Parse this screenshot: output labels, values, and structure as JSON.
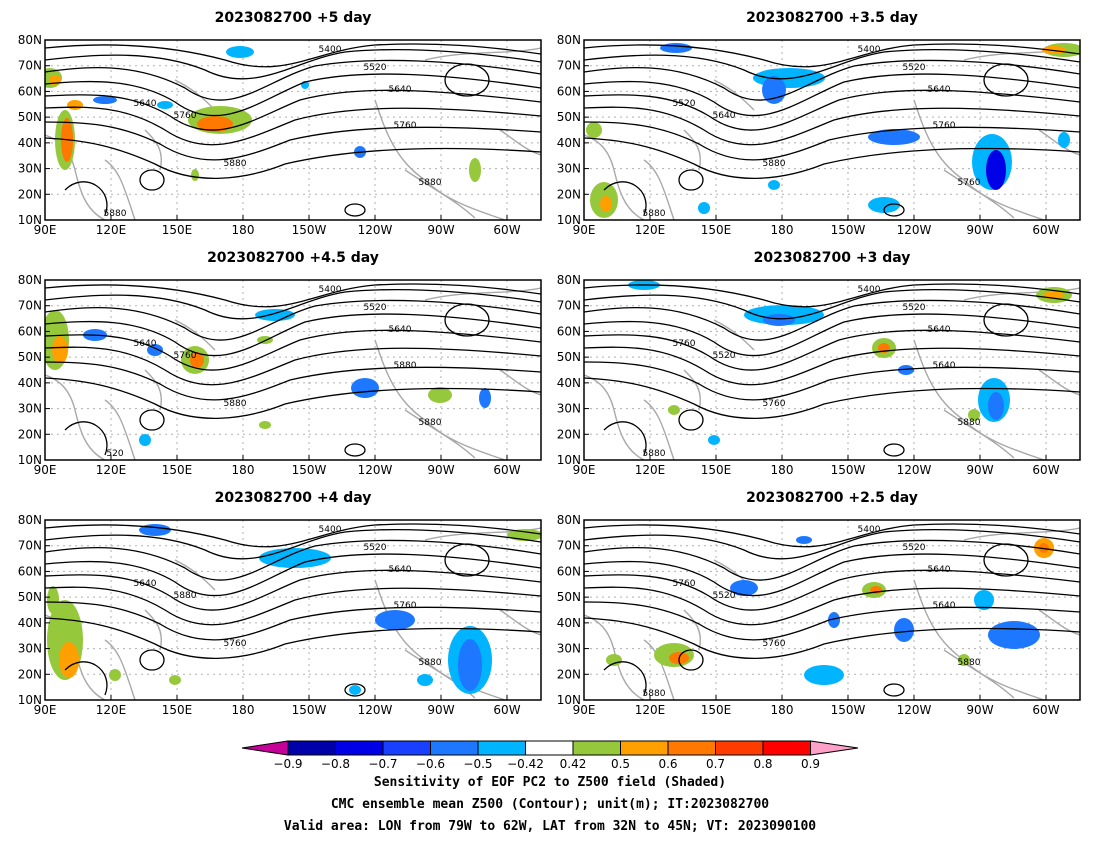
{
  "panels": [
    {
      "title": "2023082700  +5 day",
      "contour_labels": [
        "5400",
        "5520",
        "5640",
        "5640",
        "5760",
        "5760",
        "5880",
        "5880",
        "5880"
      ]
    },
    {
      "title": "2023082700  +3.5 day",
      "contour_labels": [
        "5400",
        "5520",
        "5640",
        "5520",
        "5640",
        "5760",
        "5880",
        "5760",
        "5880"
      ]
    },
    {
      "title": "2023082700  +4.5 day",
      "contour_labels": [
        "5400",
        "5520",
        "5640",
        "5640",
        "5760",
        "5880",
        "5880",
        "5880",
        "520"
      ]
    },
    {
      "title": "2023082700  +3 day",
      "contour_labels": [
        "5400",
        "5520",
        "5640",
        "5760",
        "5520",
        "5640",
        "5760",
        "5880",
        "5880"
      ]
    },
    {
      "title": "2023082700  +4 day",
      "contour_labels": [
        "5400",
        "5520",
        "5640",
        "5640",
        "5880",
        "5760",
        "5760",
        "5880"
      ]
    },
    {
      "title": "2023082700  +2.5 day",
      "contour_labels": [
        "5400",
        "5520",
        "5640",
        "5760",
        "5520",
        "5640",
        "5760",
        "5880",
        "5880"
      ]
    }
  ],
  "axes": {
    "lat_ticks": [
      "80N",
      "70N",
      "60N",
      "50N",
      "40N",
      "30N",
      "20N",
      "10N"
    ],
    "lon_ticks": [
      "90E",
      "120E",
      "150E",
      "180",
      "150W",
      "120W",
      "90W",
      "60W"
    ]
  },
  "colorbar": {
    "ticks": [
      "−0.9",
      "−0.8",
      "−0.7",
      "−0.6",
      "−0.5",
      "−0.42",
      "0.42",
      "0.5",
      "0.6",
      "0.7",
      "0.8",
      "0.9"
    ],
    "colors": [
      "#c8009a",
      "#0000aa",
      "#0000e6",
      "#1a40ff",
      "#1e78ff",
      "#00b4ff",
      "#ffffff",
      "#96c83c",
      "#ffa000",
      "#ff7800",
      "#ff3c00",
      "#ff0000",
      "#ffa0c8"
    ]
  },
  "caption": {
    "line1": "Sensitivity of EOF PC2 to Z500 field (Shaded)",
    "line2": "CMC ensemble mean Z500 (Contour); unit(m); IT:2023082700",
    "line3": "Valid area: LON from 79W to 62W, LAT from 32N to 45N; VT: 2023090100"
  }
}
